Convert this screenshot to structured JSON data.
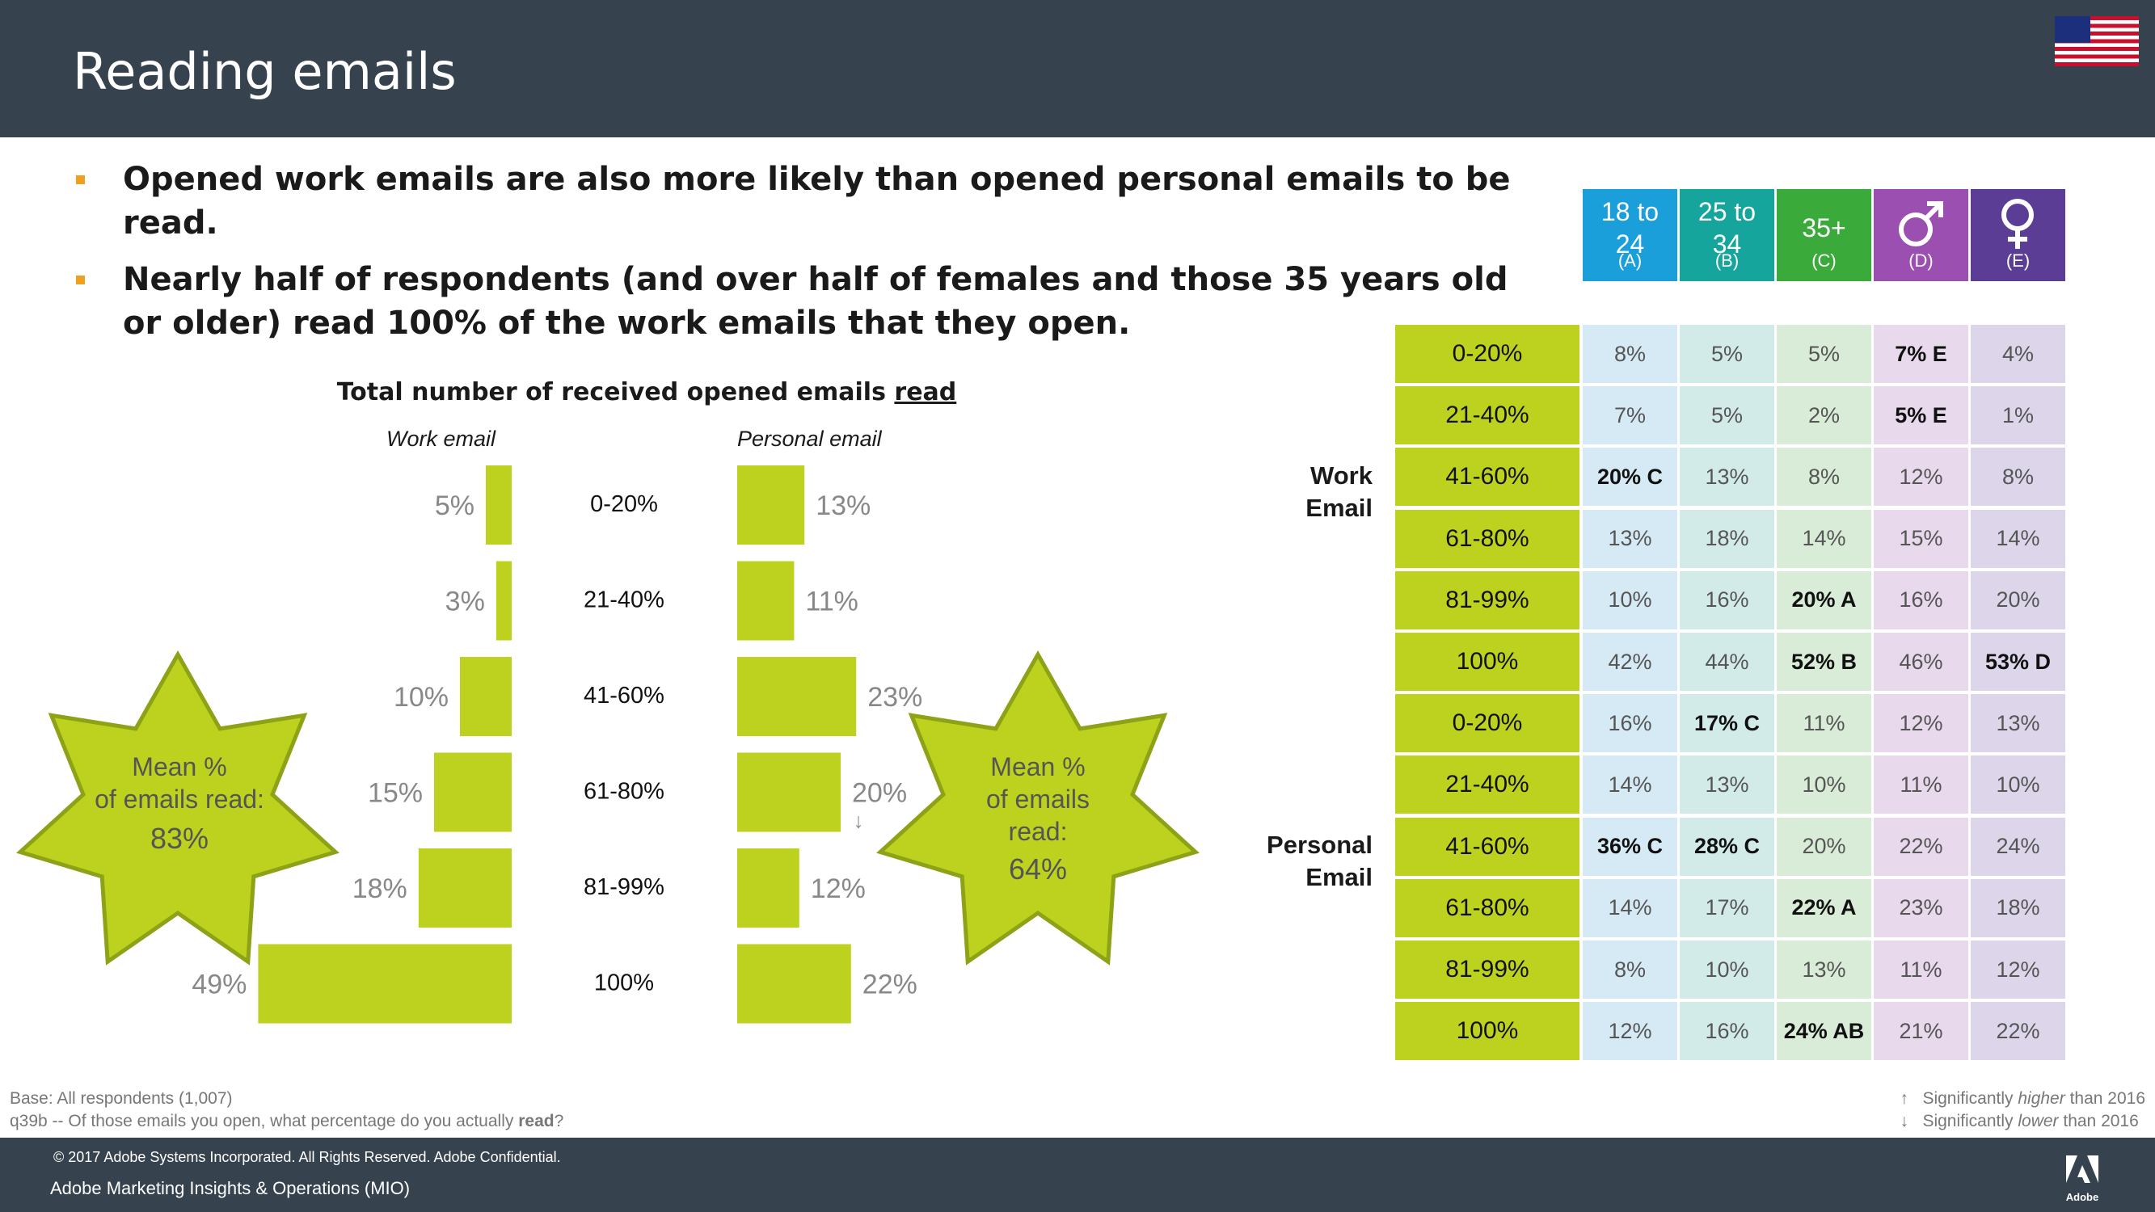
{
  "header": {
    "title": "Reading emails"
  },
  "bullets": [
    "Opened work emails are also more likely than opened personal emails to be read.",
    "Nearly half of respondents (and over half of females and those 35 years old or older) read 100% of the work emails that they open."
  ],
  "chart_data": [
    {
      "type": "bar",
      "orientation": "horizontal",
      "title": "Total number of received opened emails read",
      "title_prefix": "Total number of received opened emails ",
      "title_underlined": "read",
      "categories": [
        "0-20%",
        "21-40%",
        "41-60%",
        "61-80%",
        "81-99%",
        "100%"
      ],
      "series": [
        {
          "name": "Work email",
          "values": [
            5,
            3,
            10,
            15,
            18,
            49
          ],
          "labels": [
            "5%",
            "3%",
            "10%",
            "15%",
            "18%",
            "49%"
          ]
        },
        {
          "name": "Personal email",
          "values": [
            13,
            11,
            23,
            20,
            12,
            22
          ],
          "labels": [
            "13%",
            "11%",
            "23%",
            "20%",
            "12%",
            "22%"
          ],
          "markers": [
            "",
            "",
            "",
            "↓",
            "",
            ""
          ]
        }
      ],
      "annotations": [
        {
          "series": "Work email",
          "line1": "Mean %",
          "line2": "of emails read:",
          "line3": "83%"
        },
        {
          "series": "Personal email",
          "line1": "Mean %",
          "line2": "of emails",
          "line3": "read:",
          "line4": "64%"
        }
      ]
    },
    {
      "type": "table",
      "columns": [
        {
          "label": "18 to 24",
          "line1": "18 to",
          "line2": "24",
          "letter": "(A)",
          "color": "#1a9fdb",
          "cell_color": "#d6eaf5"
        },
        {
          "label": "25 to 34",
          "line1": "25 to",
          "line2": "34",
          "letter": "(B)",
          "color": "#16a59d",
          "cell_color": "#d2ebe9"
        },
        {
          "label": "35+",
          "line1": "35+",
          "line2": "",
          "letter": "(C)",
          "color": "#3aab3b",
          "cell_color": "#d9ecd8"
        },
        {
          "label": "Male",
          "icon": "male-symbol-icon",
          "letter": "(D)",
          "color": "#9b4fb0",
          "cell_color": "#e8d9ed"
        },
        {
          "label": "Female",
          "icon": "female-symbol-icon",
          "letter": "(E)",
          "color": "#5b3d96",
          "cell_color": "#ddd6eb"
        }
      ],
      "groups": [
        {
          "line1": "Work",
          "line2": "Email",
          "rows": [
            {
              "label": "0-20%",
              "values": [
                "8%",
                "5%",
                "5%",
                "7% E",
                "4%"
              ],
              "sig": [
                false,
                false,
                false,
                true,
                false
              ]
            },
            {
              "label": "21-40%",
              "values": [
                "7%",
                "5%",
                "2%",
                "5% E",
                "1%"
              ],
              "sig": [
                false,
                false,
                false,
                true,
                false
              ]
            },
            {
              "label": "41-60%",
              "values": [
                "20% C",
                "13%",
                "8%",
                "12%",
                "8%"
              ],
              "sig": [
                true,
                false,
                false,
                false,
                false
              ]
            },
            {
              "label": "61-80%",
              "values": [
                "13%",
                "18%",
                "14%",
                "15%",
                "14%"
              ],
              "sig": [
                false,
                false,
                false,
                false,
                false
              ]
            },
            {
              "label": "81-99%",
              "values": [
                "10%",
                "16%",
                "20% A",
                "16%",
                "20%"
              ],
              "sig": [
                false,
                false,
                true,
                false,
                false
              ]
            },
            {
              "label": "100%",
              "values": [
                "42%",
                "44%",
                "52% B",
                "46%",
                "53% D"
              ],
              "sig": [
                false,
                false,
                true,
                false,
                true
              ]
            }
          ]
        },
        {
          "line1": "Personal",
          "line2": "Email",
          "rows": [
            {
              "label": "0-20%",
              "values": [
                "16%",
                "17% C",
                "11%",
                "12%",
                "13%"
              ],
              "sig": [
                false,
                true,
                false,
                false,
                false
              ]
            },
            {
              "label": "21-40%",
              "values": [
                "14%",
                "13%",
                "10%",
                "11%",
                "10%"
              ],
              "sig": [
                false,
                false,
                false,
                false,
                false
              ]
            },
            {
              "label": "41-60%",
              "values": [
                "36% C",
                "28% C",
                "20%",
                "22%",
                "24%"
              ],
              "sig": [
                true,
                true,
                false,
                false,
                false
              ]
            },
            {
              "label": "61-80%",
              "values": [
                "14%",
                "17%",
                "22% A",
                "23%",
                "18%"
              ],
              "sig": [
                false,
                false,
                true,
                false,
                false
              ]
            },
            {
              "label": "81-99%",
              "values": [
                "8%",
                "10%",
                "13%",
                "11%",
                "12%"
              ],
              "sig": [
                false,
                false,
                false,
                false,
                false
              ]
            },
            {
              "label": "100%",
              "values": [
                "12%",
                "16%",
                "24% AB",
                "21%",
                "22%"
              ],
              "sig": [
                false,
                false,
                true,
                false,
                false
              ]
            }
          ]
        }
      ]
    }
  ],
  "notes": {
    "base": "Base: All respondents (1,007)",
    "question_prefix": "q39b -- Of those emails you open, what percentage do you actually ",
    "question_bold": "read",
    "question_suffix": "?"
  },
  "legend": {
    "higher_arrow": "↑",
    "higher_pre": "Significantly ",
    "higher_em": "higher",
    "higher_post": " than 2016",
    "lower_arrow": "↓",
    "lower_pre": "Significantly ",
    "lower_em": "lower",
    "lower_post": " than 2016"
  },
  "footer": {
    "copyright": "© 2017 Adobe Systems Incorporated.  All Rights Reserved.  Adobe Confidential.",
    "department": "Adobe Marketing Insights & Operations (MIO)",
    "brand": "Adobe"
  },
  "colors": {
    "header_bg": "#36434f",
    "bar": "#bdd21f",
    "star_fill": "#bdd21f",
    "star_stroke": "#8ea217",
    "bullet": "#f0a020"
  }
}
